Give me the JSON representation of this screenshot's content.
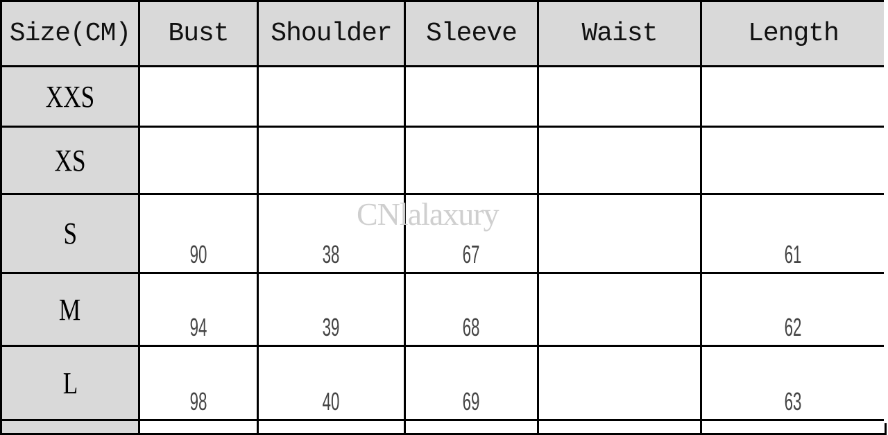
{
  "table": {
    "headers": [
      "Size(CM)",
      "Bust",
      "Shoulder",
      "Sleeve",
      "Waist",
      "Length"
    ],
    "rows": [
      {
        "size": "XXS",
        "values": [
          "",
          "",
          "",
          "",
          ""
        ]
      },
      {
        "size": "XS",
        "values": [
          "",
          "",
          "",
          "",
          ""
        ]
      },
      {
        "size": "S",
        "values": [
          "90",
          "38",
          "67",
          "",
          "61"
        ]
      },
      {
        "size": "M",
        "values": [
          "94",
          "39",
          "68",
          "",
          "62"
        ]
      },
      {
        "size": "L",
        "values": [
          "98",
          "40",
          "69",
          "",
          "63"
        ]
      }
    ]
  },
  "watermark": "CNlalaxury",
  "colors": {
    "header_bg": "#d9d9d9",
    "value_text": "#444444",
    "border": "#000000"
  }
}
